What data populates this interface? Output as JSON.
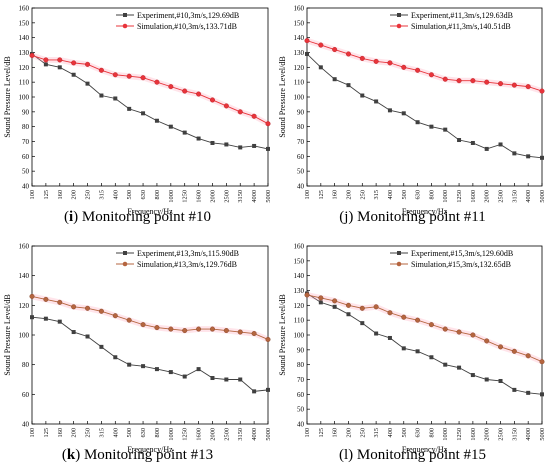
{
  "panels": [
    {
      "caption_letter": "i",
      "caption_text": "Monitoring point #10",
      "style": "red",
      "chart_data": {
        "type": "line",
        "categories": [
          "100",
          "125",
          "160",
          "200",
          "250",
          "315",
          "400",
          "500",
          "630",
          "800",
          "1000",
          "1250",
          "1600",
          "2000",
          "2500",
          "3150",
          "4000",
          "5000"
        ],
        "xlabel": "Frequency/Hz",
        "ylabel": "Sound Pressure Level/dB",
        "ylim": [
          40,
          160
        ],
        "yticks": [
          "40",
          "50",
          "60",
          "70",
          "80",
          "90",
          "100",
          "110",
          "120",
          "130",
          "140",
          "150",
          "160"
        ],
        "legend_position": "top-right",
        "series": [
          {
            "name": "Experiment,#10,3m/s,129.69dB",
            "color": "#404040",
            "marker": "square",
            "values": [
              129,
              122,
              120,
              115,
              109,
              101,
              99,
              92,
              89,
              84,
              80,
              76,
              72,
              69,
              68,
              66,
              67,
              65
            ]
          },
          {
            "name": "Simulation,#10,3m/s,133.71dB",
            "color": "#e8343b",
            "marker": "circle",
            "values": [
              128,
              125,
              125,
              123,
              122,
              118,
              115,
              114,
              113,
              110,
              107,
              104,
              102,
              98,
              94,
              90,
              87,
              82
            ]
          }
        ]
      }
    },
    {
      "caption_letter": "j",
      "caption_text": "Monitoring point #11",
      "style": "red",
      "chart_data": {
        "type": "line",
        "categories": [
          "100",
          "125",
          "160",
          "200",
          "250",
          "315",
          "400",
          "500",
          "630",
          "800",
          "1000",
          "1250",
          "1600",
          "2000",
          "2500",
          "3150",
          "4000",
          "5000"
        ],
        "xlabel": "Frequency/Hz",
        "ylabel": "Sound Pressure Level/dB",
        "ylim": [
          40,
          160
        ],
        "yticks": [
          "40",
          "50",
          "60",
          "70",
          "80",
          "90",
          "100",
          "110",
          "120",
          "130",
          "140",
          "150",
          "160"
        ],
        "legend_position": "top-right",
        "series": [
          {
            "name": "Experiment,#11,3m/s,129.63dB",
            "color": "#404040",
            "marker": "square",
            "values": [
              129,
              120,
              112,
              108,
              101,
              97,
              91,
              89,
              83,
              80,
              78,
              71,
              69,
              65,
              68,
              62,
              60,
              59
            ]
          },
          {
            "name": "Simulation,#11,3m/s,140.51dB",
            "color": "#e8343b",
            "marker": "circle",
            "values": [
              138,
              135,
              132,
              129,
              126,
              124,
              123,
              120,
              118,
              115,
              112,
              111,
              111,
              110,
              109,
              108,
              107,
              104
            ]
          }
        ]
      }
    },
    {
      "caption_letter": "k",
      "caption_text": "Monitoring point #13",
      "style": "brown",
      "chart_data": {
        "type": "line",
        "categories": [
          "100",
          "125",
          "160",
          "200",
          "250",
          "315",
          "400",
          "500",
          "630",
          "800",
          "1000",
          "1250",
          "1600",
          "2000",
          "2500",
          "3150",
          "4000",
          "5000"
        ],
        "xlabel": "Frequency/Hz",
        "ylabel": "Sound Pressure Level/dB",
        "ylim": [
          40,
          160
        ],
        "yticks": [
          "40",
          "60",
          "80",
          "100",
          "120",
          "140",
          "160"
        ],
        "legend_position": "top-right",
        "series": [
          {
            "name": "Experiment,#13,3m/s,115.90dB",
            "color": "#404040",
            "marker": "square",
            "values": [
              112,
              111,
              109,
              102,
              99,
              92,
              85,
              80,
              79,
              77,
              75,
              72,
              77,
              71,
              70,
              70,
              62,
              63
            ]
          },
          {
            "name": "Simulation,#13,3m/s,129.76dB",
            "color": "#b5653f",
            "marker": "circle",
            "values": [
              126,
              124,
              122,
              119,
              118,
              116,
              113,
              110,
              107,
              105,
              104,
              103,
              104,
              104,
              103,
              102,
              101,
              97
            ]
          }
        ]
      }
    },
    {
      "caption_letter": "l",
      "caption_text": "Monitoring point #15",
      "style": "brown",
      "chart_data": {
        "type": "line",
        "categories": [
          "100",
          "125",
          "160",
          "200",
          "250",
          "315",
          "400",
          "500",
          "630",
          "800",
          "1000",
          "1250",
          "1600",
          "2000",
          "2500",
          "3150",
          "4000",
          "5000"
        ],
        "xlabel": "Frequency/Hz",
        "ylabel": "Sound Pressure Level/dB",
        "ylim": [
          40,
          160
        ],
        "yticks": [
          "40",
          "50",
          "60",
          "70",
          "80",
          "90",
          "100",
          "110",
          "120",
          "130",
          "140",
          "150",
          "160"
        ],
        "legend_position": "top-right",
        "series": [
          {
            "name": "Experiment,#15,3m/s,129.60dB",
            "color": "#404040",
            "marker": "square",
            "values": [
              128,
              122,
              119,
              114,
              108,
              101,
              98,
              91,
              89,
              85,
              80,
              78,
              73,
              70,
              69,
              63,
              61,
              60
            ]
          },
          {
            "name": "Simulation,#15,3m/s,132.65dB",
            "color": "#b5653f",
            "marker": "circle",
            "values": [
              127,
              125,
              123,
              120,
              118,
              119,
              115,
              112,
              110,
              107,
              104,
              102,
              100,
              96,
              92,
              89,
              86,
              82
            ]
          }
        ]
      }
    }
  ]
}
